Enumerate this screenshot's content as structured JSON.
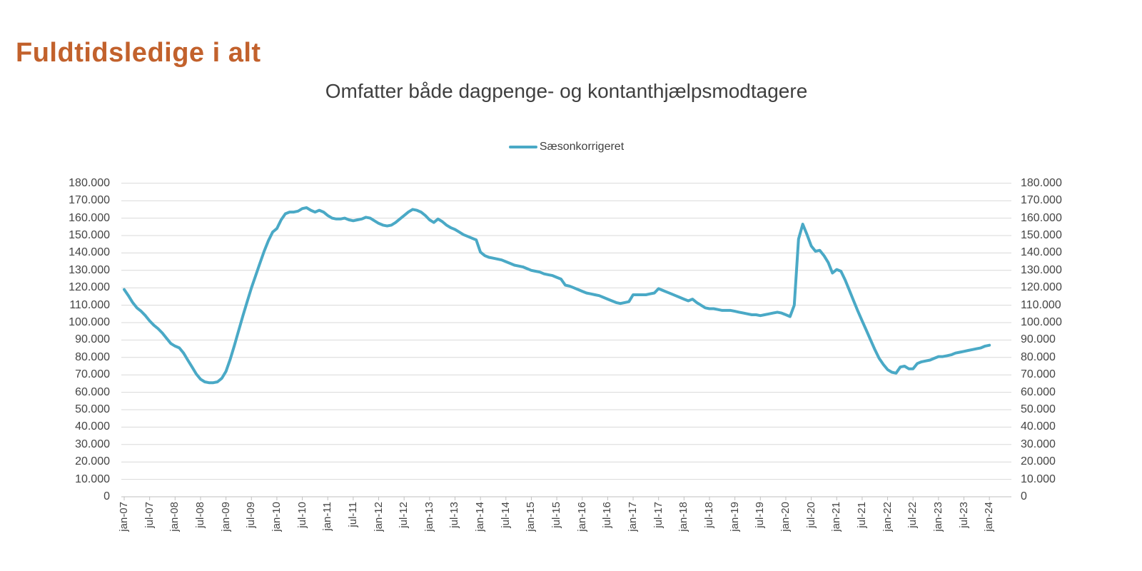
{
  "page": {
    "title": "Fuldtidsledige i alt"
  },
  "colors": {
    "title": "#C2612C",
    "subtitle": "#3F3F3F",
    "axis_text": "#444444",
    "gridline": "#D9D9D9",
    "axis_line": "#BFBFBF",
    "series": "#4AA9C6",
    "background": "#FFFFFF"
  },
  "legend": {
    "label": "Sæsonkorrigeret"
  },
  "chart_data": {
    "type": "line",
    "title": "Omfatter både dagpenge- og kontanthjælpsmodtagere",
    "legend_entries": [
      "Sæsonkorrigeret"
    ],
    "legend_position": "top-center",
    "grid": "horizontal",
    "ylim": [
      0,
      180000
    ],
    "y_step": 10000,
    "y_tick_labels": [
      "0",
      "10.000",
      "20.000",
      "30.000",
      "40.000",
      "50.000",
      "60.000",
      "70.000",
      "80.000",
      "90.000",
      "100.000",
      "110.000",
      "120.000",
      "130.000",
      "140.000",
      "150.000",
      "160.000",
      "170.000",
      "180.000"
    ],
    "x_tick_labels": [
      "jan-07",
      "jul-07",
      "jan-08",
      "jul-08",
      "jan-09",
      "jul-09",
      "jan-10",
      "jul-10",
      "jan-11",
      "jul-11",
      "jan-12",
      "jul-12",
      "jan-13",
      "jul-13",
      "jan-14",
      "jul-14",
      "jan-15",
      "jul-15",
      "jan-16",
      "jul-16",
      "jan-17",
      "jul-17",
      "jan-18",
      "jul-18",
      "jan-19",
      "jul-19",
      "jan-20",
      "jul-20",
      "jan-21",
      "jul-21",
      "jan-22",
      "jul-22",
      "jan-23",
      "jul-23",
      "jan-24"
    ],
    "axes": {
      "y_left": true,
      "y_right": true,
      "x_label_rotation": -90
    },
    "series": [
      {
        "name": "Sæsonkorrigeret",
        "color": "#4AA9C6",
        "x": [
          "jan-07",
          "feb-07",
          "mar-07",
          "apr-07",
          "maj-07",
          "jun-07",
          "jul-07",
          "aug-07",
          "sep-07",
          "okt-07",
          "nov-07",
          "dec-07",
          "jan-08",
          "feb-08",
          "mar-08",
          "apr-08",
          "maj-08",
          "jun-08",
          "jul-08",
          "aug-08",
          "sep-08",
          "okt-08",
          "nov-08",
          "dec-08",
          "jan-09",
          "feb-09",
          "mar-09",
          "apr-09",
          "maj-09",
          "jun-09",
          "jul-09",
          "aug-09",
          "sep-09",
          "okt-09",
          "nov-09",
          "dec-09",
          "jan-10",
          "feb-10",
          "mar-10",
          "apr-10",
          "maj-10",
          "jun-10",
          "jul-10",
          "aug-10",
          "sep-10",
          "okt-10",
          "nov-10",
          "dec-10",
          "jan-11",
          "feb-11",
          "mar-11",
          "apr-11",
          "maj-11",
          "jun-11",
          "jul-11",
          "aug-11",
          "sep-11",
          "okt-11",
          "nov-11",
          "dec-11",
          "jan-12",
          "feb-12",
          "mar-12",
          "apr-12",
          "maj-12",
          "jun-12",
          "jul-12",
          "aug-12",
          "sep-12",
          "okt-12",
          "nov-12",
          "dec-12",
          "jan-13",
          "feb-13",
          "mar-13",
          "apr-13",
          "maj-13",
          "jun-13",
          "jul-13",
          "aug-13",
          "sep-13",
          "okt-13",
          "nov-13",
          "dec-13",
          "jan-14",
          "feb-14",
          "mar-14",
          "apr-14",
          "maj-14",
          "jun-14",
          "jul-14",
          "aug-14",
          "sep-14",
          "okt-14",
          "nov-14",
          "dec-14",
          "jan-15",
          "feb-15",
          "mar-15",
          "apr-15",
          "maj-15",
          "jun-15",
          "jul-15",
          "aug-15",
          "sep-15",
          "okt-15",
          "nov-15",
          "dec-15",
          "jan-16",
          "feb-16",
          "mar-16",
          "apr-16",
          "maj-16",
          "jun-16",
          "jul-16",
          "aug-16",
          "sep-16",
          "okt-16",
          "nov-16",
          "dec-16",
          "jan-17",
          "feb-17",
          "mar-17",
          "apr-17",
          "maj-17",
          "jun-17",
          "jul-17",
          "aug-17",
          "sep-17",
          "okt-17",
          "nov-17",
          "dec-17",
          "jan-18",
          "feb-18",
          "mar-18",
          "apr-18",
          "maj-18",
          "jun-18",
          "jul-18",
          "aug-18",
          "sep-18",
          "okt-18",
          "nov-18",
          "dec-18",
          "jan-19",
          "feb-19",
          "mar-19",
          "apr-19",
          "maj-19",
          "jun-19",
          "jul-19",
          "aug-19",
          "sep-19",
          "okt-19",
          "nov-19",
          "dec-19",
          "jan-20",
          "feb-20",
          "mar-20",
          "apr-20",
          "maj-20",
          "jun-20",
          "jul-20",
          "aug-20",
          "sep-20",
          "okt-20",
          "nov-20",
          "dec-20",
          "jan-21",
          "feb-21",
          "mar-21",
          "apr-21",
          "maj-21",
          "jun-21",
          "jul-21",
          "aug-21",
          "sep-21",
          "okt-21",
          "nov-21",
          "dec-21",
          "jan-22",
          "feb-22",
          "mar-22",
          "apr-22",
          "maj-22",
          "jun-22",
          "jul-22",
          "aug-22",
          "sep-22",
          "okt-22",
          "nov-22",
          "dec-22",
          "jan-23",
          "feb-23",
          "mar-23",
          "apr-23",
          "maj-23",
          "jun-23",
          "jul-23",
          "aug-23",
          "sep-23",
          "okt-23",
          "nov-23",
          "dec-23",
          "jan-24"
        ],
        "values": [
          119000,
          115500,
          111500,
          108500,
          106500,
          104000,
          101000,
          98500,
          96500,
          94000,
          91000,
          88000,
          86500,
          85500,
          82500,
          78500,
          74500,
          70500,
          67500,
          66000,
          65500,
          65500,
          66000,
          68000,
          72000,
          79000,
          87000,
          95500,
          104000,
          112000,
          120000,
          127000,
          134000,
          141000,
          147000,
          152000,
          154000,
          159000,
          162500,
          163500,
          163500,
          164000,
          165500,
          166000,
          164500,
          163500,
          164500,
          163500,
          161500,
          160000,
          159500,
          159500,
          160000,
          159000,
          158500,
          159000,
          159500,
          160500,
          160000,
          158500,
          157000,
          156000,
          155500,
          156000,
          157500,
          159500,
          161500,
          163500,
          165000,
          164500,
          163500,
          161500,
          159000,
          157500,
          159500,
          158000,
          156000,
          154500,
          153500,
          152000,
          150500,
          149500,
          148500,
          147500,
          140500,
          138500,
          137500,
          137000,
          136500,
          136000,
          135000,
          134000,
          133000,
          132500,
          132000,
          131000,
          130000,
          129500,
          129000,
          128000,
          127500,
          127000,
          126000,
          125000,
          121500,
          121000,
          120000,
          119000,
          118000,
          117000,
          116500,
          116000,
          115500,
          114500,
          113500,
          112500,
          111500,
          111000,
          111500,
          112000,
          116000,
          116000,
          116000,
          116000,
          116500,
          117000,
          119500,
          118500,
          117500,
          116500,
          115500,
          114500,
          113500,
          112500,
          113500,
          111500,
          110000,
          108500,
          108000,
          108000,
          107500,
          107000,
          107000,
          107000,
          106500,
          106000,
          105500,
          105000,
          104500,
          104500,
          104000,
          104500,
          105000,
          105500,
          106000,
          105500,
          104500,
          103500,
          110000,
          148000,
          156500,
          150500,
          144000,
          141000,
          141500,
          138500,
          134500,
          128500,
          130500,
          129500,
          124500,
          118500,
          112500,
          106500,
          101000,
          95500,
          90000,
          84500,
          79500,
          76000,
          73000,
          71500,
          71000,
          74500,
          75000,
          73500,
          73500,
          76500,
          77500,
          78000,
          78500,
          79500,
          80500,
          80500,
          81000,
          81500,
          82500,
          83000,
          83500,
          84000,
          84500,
          85000,
          85500,
          86500,
          87000
        ]
      }
    ]
  }
}
